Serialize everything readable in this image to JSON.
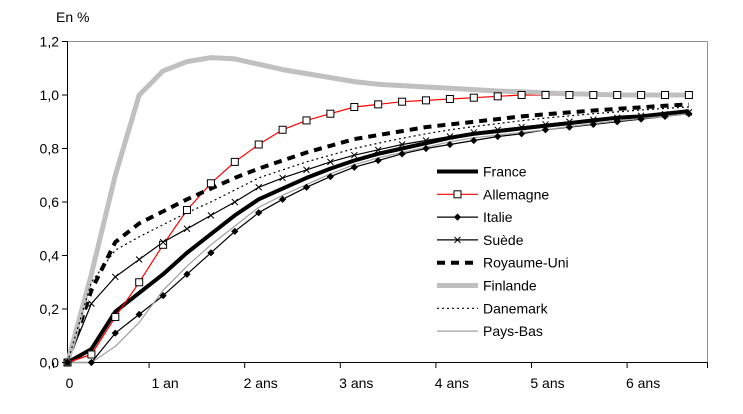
{
  "chart_data": {
    "type": "line",
    "title": "En %",
    "x_axis": {
      "tick_labels": [
        "0",
        "1 an",
        "2 ans",
        "3 ans",
        "4 ans",
        "5 ans",
        "6 ans"
      ],
      "tick_values": [
        0,
        1,
        2,
        3,
        4,
        5,
        6
      ],
      "range": [
        0,
        6.7
      ]
    },
    "y_axis": {
      "tick_labels": [
        "0,0",
        "0,2",
        "0,4",
        "0,6",
        "0,8",
        "1,0",
        "1,2"
      ],
      "tick_values": [
        0,
        0.2,
        0.4,
        0.6,
        0.8,
        1.0,
        1.2
      ],
      "range": [
        0,
        1.2
      ]
    },
    "x_start": 0,
    "x_step": 0.25,
    "grid": false,
    "legend_position": "inside-right",
    "axis_color": "#000000",
    "frame_color": "#909090",
    "series": [
      {
        "name": "France",
        "color": "#000000",
        "width": 4,
        "dash": "solid",
        "marker": "none",
        "values": [
          0,
          0.05,
          0.19,
          0.26,
          0.33,
          0.41,
          0.48,
          0.55,
          0.61,
          0.65,
          0.69,
          0.725,
          0.755,
          0.78,
          0.8,
          0.82,
          0.84,
          0.855,
          0.865,
          0.875,
          0.885,
          0.895,
          0.905,
          0.915,
          0.92,
          0.93,
          0.94
        ]
      },
      {
        "name": "Allemagne",
        "color": "#FF0000",
        "width": 1.2,
        "dash": "solid",
        "marker": "square-open",
        "marker_color": "#000000",
        "values": [
          0,
          0.03,
          0.17,
          0.3,
          0.44,
          0.57,
          0.67,
          0.75,
          0.815,
          0.87,
          0.905,
          0.93,
          0.955,
          0.965,
          0.975,
          0.98,
          0.985,
          0.99,
          0.995,
          1,
          1,
          1,
          1,
          1,
          1,
          1,
          1
        ]
      },
      {
        "name": "Italie",
        "color": "#000000",
        "width": 1.2,
        "dash": "solid",
        "marker": "diamond",
        "marker_color": "#000000",
        "values": [
          0,
          0,
          0.11,
          0.18,
          0.25,
          0.33,
          0.41,
          0.49,
          0.56,
          0.61,
          0.655,
          0.695,
          0.73,
          0.755,
          0.78,
          0.8,
          0.815,
          0.83,
          0.845,
          0.855,
          0.87,
          0.88,
          0.89,
          0.9,
          0.91,
          0.92,
          0.93
        ]
      },
      {
        "name": "Suède",
        "color": "#000000",
        "width": 1.2,
        "dash": "solid",
        "marker": "x",
        "marker_color": "#000000",
        "values": [
          0,
          0.22,
          0.32,
          0.385,
          0.45,
          0.5,
          0.55,
          0.6,
          0.655,
          0.69,
          0.72,
          0.75,
          0.775,
          0.795,
          0.815,
          0.83,
          0.845,
          0.86,
          0.87,
          0.88,
          0.89,
          0.9,
          0.908,
          0.915,
          0.922,
          0.928,
          0.935
        ]
      },
      {
        "name": "Royaume-Uni",
        "color": "#000000",
        "width": 4,
        "dash": "dash",
        "marker": "none",
        "values": [
          0,
          0.27,
          0.45,
          0.52,
          0.565,
          0.61,
          0.65,
          0.69,
          0.725,
          0.755,
          0.785,
          0.81,
          0.835,
          0.85,
          0.865,
          0.88,
          0.89,
          0.9,
          0.91,
          0.92,
          0.928,
          0.935,
          0.942,
          0.948,
          0.954,
          0.96,
          0.965
        ]
      },
      {
        "name": "Finlande",
        "color": "#C0C0C0",
        "width": 5,
        "dash": "solid",
        "marker": "none",
        "values": [
          0,
          0.33,
          0.7,
          1.0,
          1.09,
          1.125,
          1.14,
          1.135,
          1.115,
          1.095,
          1.08,
          1.065,
          1.05,
          1.04,
          1.035,
          1.03,
          1.025,
          1.02,
          1.015,
          1.012,
          1.008,
          1.005,
          1.003,
          1.0,
          1.0,
          1.0,
          1.0
        ]
      },
      {
        "name": "Danemark",
        "color": "#000000",
        "width": 1.2,
        "dash": "dot",
        "marker": "none",
        "values": [
          0,
          0.3,
          0.42,
          0.47,
          0.515,
          0.56,
          0.6,
          0.645,
          0.69,
          0.72,
          0.75,
          0.775,
          0.8,
          0.82,
          0.838,
          0.855,
          0.87,
          0.882,
          0.893,
          0.904,
          0.914,
          0.922,
          0.93,
          0.937,
          0.944,
          0.95,
          0.955
        ]
      },
      {
        "name": "Pays-Bas",
        "color": "#A0A0A0",
        "width": 1.2,
        "dash": "solid",
        "marker": "none",
        "values": [
          0,
          0,
          0.06,
          0.15,
          0.27,
          0.36,
          0.44,
          0.51,
          0.58,
          0.625,
          0.665,
          0.705,
          0.74,
          0.765,
          0.785,
          0.805,
          0.825,
          0.84,
          0.85,
          0.86,
          0.87,
          0.882,
          0.893,
          0.903,
          0.912,
          0.92,
          0.93
        ]
      }
    ]
  }
}
